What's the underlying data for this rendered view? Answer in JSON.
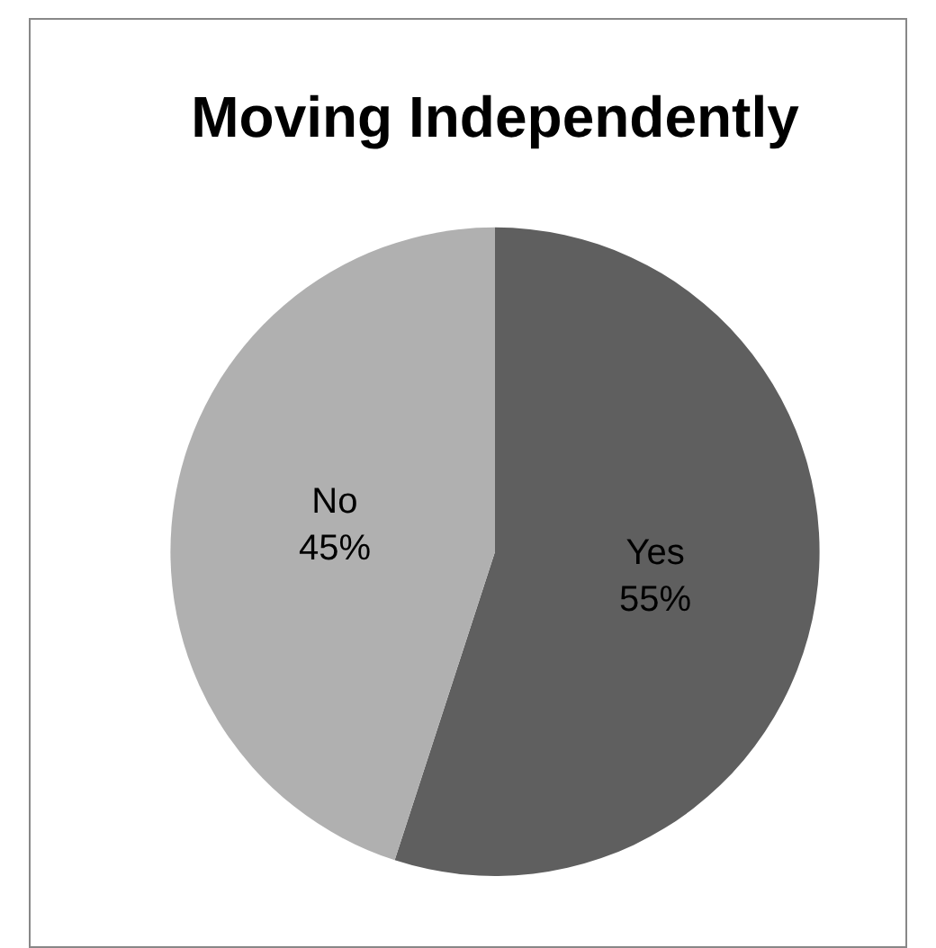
{
  "chart_data": {
    "type": "pie",
    "title": "Moving Independently",
    "categories": [
      "Yes",
      "No"
    ],
    "values": [
      55,
      45
    ],
    "colors": [
      "#5f5f5f",
      "#b0b0b0"
    ],
    "value_labels": [
      "55%",
      "45%"
    ],
    "legend": false
  }
}
